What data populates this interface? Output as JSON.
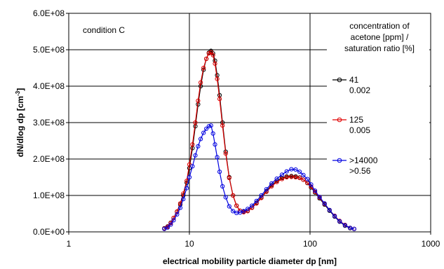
{
  "chart_data": {
    "type": "scatter",
    "title": "",
    "annotation": "condition C",
    "xlabel": "electrical mobility particle diameter dp [nm]",
    "ylabel_main": "dN/dlog dp [cm",
    "ylabel_sup": "-3",
    "ylabel_end": "]",
    "x_scale": "log",
    "xlim": [
      1,
      1000
    ],
    "ylim": [
      0,
      600000000
    ],
    "x_ticks": [
      1,
      10,
      100,
      1000
    ],
    "x_tick_labels": [
      "1",
      "10",
      "100",
      "1000"
    ],
    "y_ticks": [
      0,
      100000000,
      200000000,
      300000000,
      400000000,
      500000000,
      600000000
    ],
    "y_tick_labels": [
      "0.0E+00",
      "1.0E+08",
      "2.0E+08",
      "3.0E+08",
      "4.0E+08",
      "5.0E+08",
      "6.0E+08"
    ],
    "grid": "major gridlines",
    "legend_title": [
      "concentration of",
      "acetone [ppm] /",
      "saturation ratio [%]"
    ],
    "legend_position": "right",
    "series": [
      {
        "legend_lines": [
          "41",
          "0.002"
        ],
        "color": "#000000",
        "x": [
          6.2,
          6.6,
          7.0,
          7.4,
          7.9,
          8.4,
          8.9,
          9.5,
          10.0,
          10.6,
          11.2,
          11.8,
          12.4,
          13.1,
          13.8,
          14.5,
          15.1,
          15.7,
          16.3,
          17.0,
          17.8,
          18.8,
          20.0,
          21.4,
          23.0,
          24.6,
          26.3,
          28.2,
          30.4,
          33.0,
          36.0,
          39.5,
          43.5,
          48.0,
          53.0,
          58.5,
          64.0,
          70.0,
          76.0,
          82.0,
          88.0,
          95.0,
          102.0,
          110.0,
          120.0,
          132.0,
          145.0,
          160.0,
          176.0,
          195.0,
          215.0,
          232.0
        ],
        "y": [
          10000000,
          15000000,
          25000000,
          38000000,
          55000000,
          75000000,
          100000000,
          135000000,
          175000000,
          230000000,
          290000000,
          350000000,
          400000000,
          445000000,
          475000000,
          492000000,
          497000000,
          490000000,
          470000000,
          430000000,
          375000000,
          300000000,
          220000000,
          150000000,
          100000000,
          72000000,
          58000000,
          55000000,
          58000000,
          67000000,
          80000000,
          95000000,
          112000000,
          128000000,
          140000000,
          148000000,
          152000000,
          153000000,
          152000000,
          149000000,
          143000000,
          134000000,
          122000000,
          108000000,
          92000000,
          75000000,
          58000000,
          42000000,
          28000000,
          17000000,
          10000000,
          8000000
        ]
      },
      {
        "legend_lines": [
          "125",
          "0.005"
        ],
        "color": "#e00000",
        "x": [
          6.2,
          6.6,
          7.0,
          7.4,
          7.9,
          8.4,
          8.9,
          9.5,
          10.0,
          10.6,
          11.2,
          11.8,
          12.4,
          13.1,
          13.8,
          14.5,
          15.1,
          15.7,
          16.3,
          17.0,
          17.8,
          18.8,
          20.0,
          21.4,
          23.0,
          24.6,
          26.3,
          28.2,
          30.4,
          33.0,
          36.0,
          39.5,
          43.5,
          48.0,
          53.0,
          58.5,
          64.0,
          70.0,
          76.0,
          82.0,
          88.0,
          95.0,
          102.0,
          110.0,
          120.0,
          132.0,
          145.0,
          160.0,
          176.0,
          195.0,
          215.0,
          232.0
        ],
        "y": [
          9000000,
          14000000,
          24000000,
          38000000,
          56000000,
          78000000,
          105000000,
          140000000,
          185000000,
          240000000,
          300000000,
          360000000,
          410000000,
          450000000,
          475000000,
          490000000,
          493000000,
          485000000,
          462000000,
          420000000,
          365000000,
          292000000,
          215000000,
          148000000,
          100000000,
          72000000,
          58000000,
          54000000,
          57000000,
          66000000,
          78000000,
          93000000,
          110000000,
          125000000,
          137000000,
          145000000,
          150000000,
          151000000,
          150000000,
          148000000,
          143000000,
          135000000,
          124000000,
          110000000,
          94000000,
          77000000,
          60000000,
          44000000,
          30000000,
          19000000,
          11000000,
          8000000
        ]
      },
      {
        "legend_lines": [
          ">14000",
          ">0.56"
        ],
        "color": "#0000e0",
        "x": [
          6.2,
          6.6,
          7.0,
          7.4,
          7.9,
          8.4,
          8.9,
          9.5,
          10.0,
          10.6,
          11.2,
          11.8,
          12.4,
          13.1,
          13.8,
          14.5,
          15.1,
          15.7,
          16.3,
          17.0,
          17.8,
          18.8,
          20.0,
          21.4,
          23.0,
          24.6,
          26.3,
          28.2,
          30.4,
          33.0,
          36.0,
          39.5,
          43.5,
          48.0,
          53.0,
          58.5,
          64.0,
          70.0,
          76.0,
          82.0,
          88.0,
          95.0,
          102.0,
          110.0,
          120.0,
          132.0,
          145.0,
          160.0,
          176.0,
          195.0,
          215.0,
          232.0
        ],
        "y": [
          8000000,
          12000000,
          20000000,
          32000000,
          48000000,
          66000000,
          90000000,
          120000000,
          150000000,
          180000000,
          210000000,
          235000000,
          255000000,
          272000000,
          283000000,
          290000000,
          292000000,
          270000000,
          240000000,
          205000000,
          165000000,
          125000000,
          95000000,
          70000000,
          57000000,
          52000000,
          53000000,
          57000000,
          63000000,
          72000000,
          85000000,
          100000000,
          117000000,
          133000000,
          146000000,
          157000000,
          166000000,
          172000000,
          171000000,
          165000000,
          156000000,
          145000000,
          130000000,
          113000000,
          96000000,
          78000000,
          60000000,
          43000000,
          29000000,
          18000000,
          11000000,
          8000000
        ]
      }
    ]
  }
}
